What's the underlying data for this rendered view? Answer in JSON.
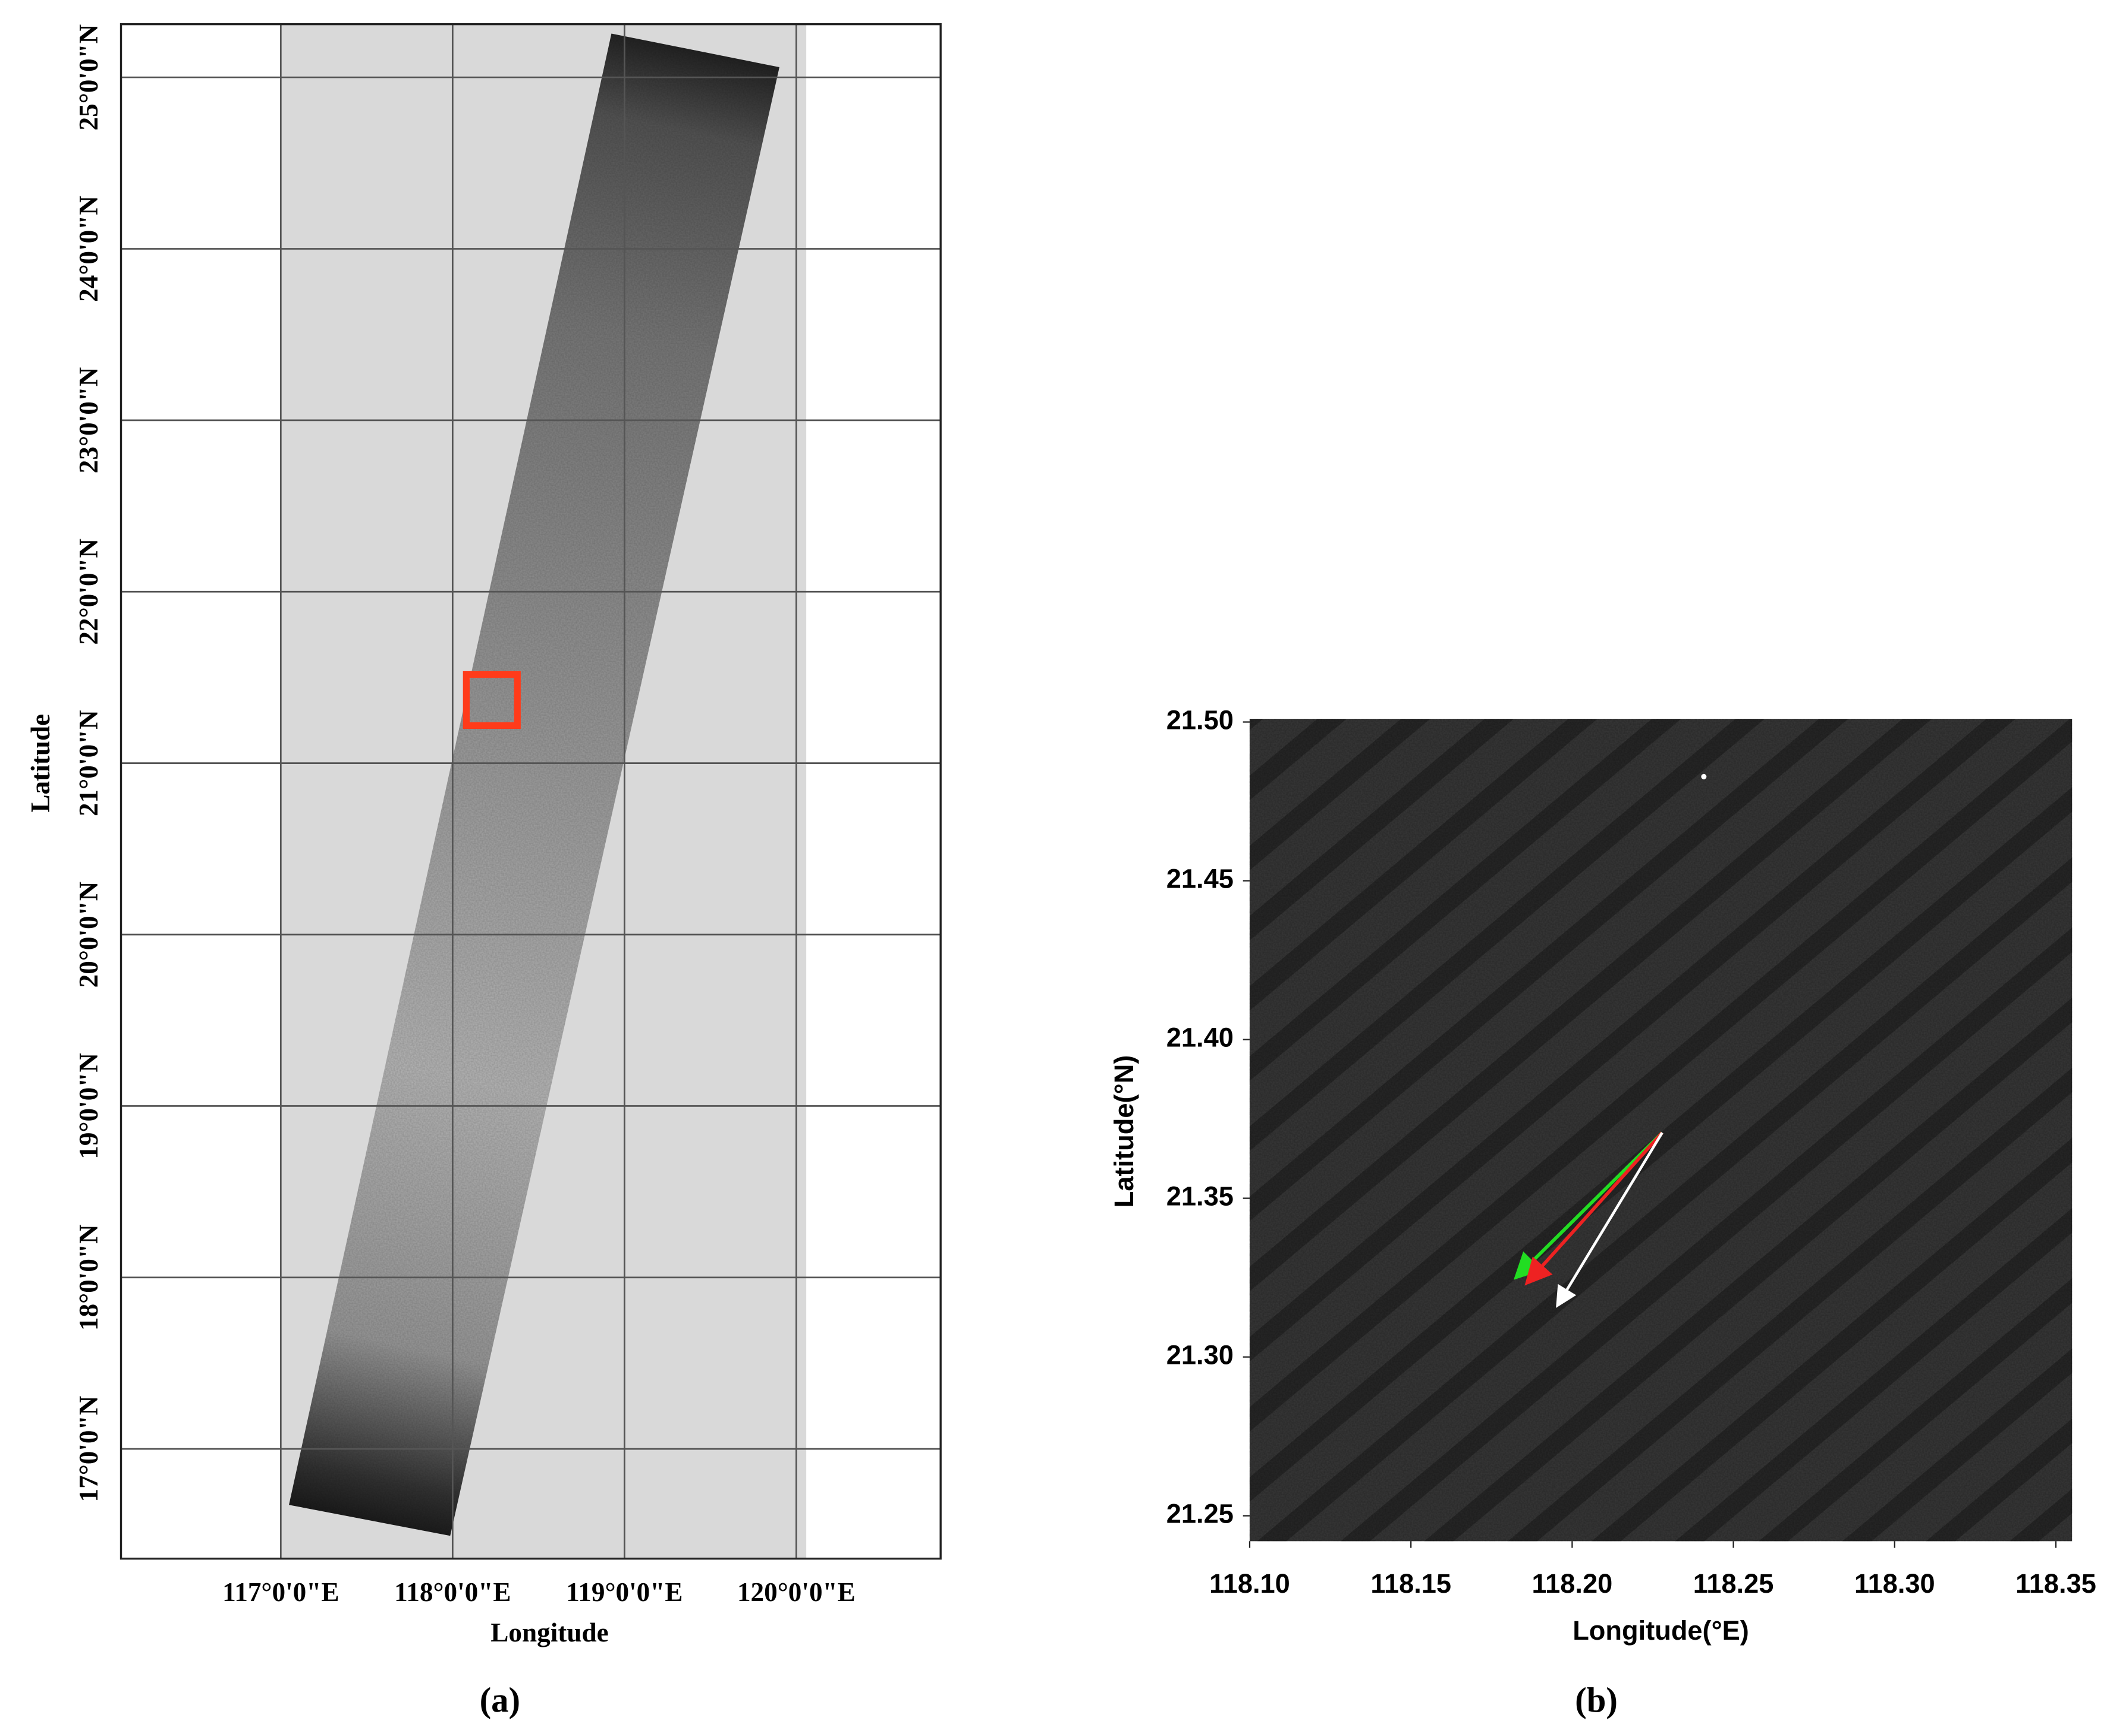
{
  "chart_data": [
    {
      "type": "map",
      "panel_label": "(a)",
      "x_label": "Longitude",
      "y_label": "Latitude",
      "xlim": [
        116.07,
        120.84
      ],
      "ylim": [
        16.36,
        25.31
      ],
      "xticks": [
        {
          "value": 117,
          "label": "117°0'0\"E"
        },
        {
          "value": 118,
          "label": "118°0'0\"E"
        },
        {
          "value": 119,
          "label": "119°0'0\"E"
        },
        {
          "value": 120,
          "label": "120°0'0\"E"
        }
      ],
      "yticks": [
        {
          "value": 17,
          "label": "17°0'0\"N"
        },
        {
          "value": 18,
          "label": "18°0'0\"N"
        },
        {
          "value": 19,
          "label": "19°0'0\"N"
        },
        {
          "value": 20,
          "label": "20°0'0\"N"
        },
        {
          "value": 21,
          "label": "21°0'0\"N"
        },
        {
          "value": 22,
          "label": "22°0'0\"N"
        },
        {
          "value": 23,
          "label": "23°0'0\"N"
        },
        {
          "value": 24,
          "label": "24°0'0\"N"
        },
        {
          "value": 25,
          "label": "25°0'0\"N"
        }
      ],
      "grid": true
    },
    {
      "type": "image",
      "panel_label": "(b)",
      "x_label": "Longitude(°E)",
      "y_label": "Latitude(°N)",
      "xlim": [
        118.1,
        118.355
      ],
      "ylim": [
        21.242,
        21.501
      ],
      "xticks": [
        {
          "value": 118.1,
          "label": "118.10"
        },
        118.15,
        {
          "value": 118.2,
          "label": "118.20"
        },
        118.25,
        {
          "value": 118.3,
          "label": "118.30"
        },
        118.35
      ],
      "yticks": [
        {
          "value": 21.25,
          "label": "21.25"
        },
        {
          "value": 21.3,
          "label": "21.30"
        },
        21.35,
        {
          "value": 21.4,
          "label": "21.40"
        },
        21.45,
        {
          "value": 21.5,
          "label": "21.50"
        }
      ],
      "grid": false
    }
  ]
}
